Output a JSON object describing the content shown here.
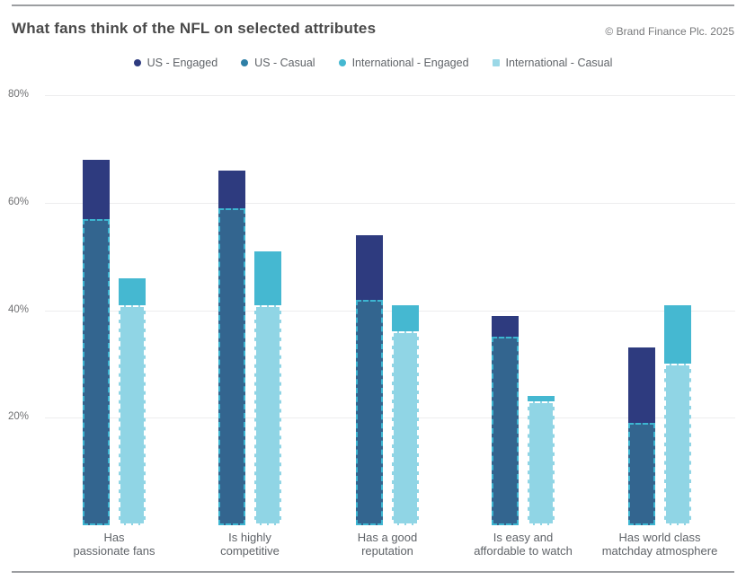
{
  "header": {
    "title": "What fans think of the NFL on selected attributes",
    "copyright": "© Brand Finance Plc. 2025"
  },
  "legend": {
    "items": [
      {
        "label": "US - Engaged",
        "marker": "circle",
        "color": "#2e3b7f"
      },
      {
        "label": "US - Casual",
        "marker": "circle",
        "color": "#2e7fa6"
      },
      {
        "label": "International - Engaged",
        "marker": "circle",
        "color": "#45b8d1"
      },
      {
        "label": "International - Casual",
        "marker": "square",
        "color": "#9bd8e7"
      }
    ]
  },
  "chart_data": {
    "type": "bar",
    "title": "What fans think of the NFL on selected attributes",
    "unit": "percent",
    "categories": [
      "Has passionate fans",
      "Is highly competitive",
      "Has a good reputation",
      "Is easy and affordable to watch",
      "Has world class matchday atmosphere"
    ],
    "category_label_lines": [
      [
        "Has",
        "passionate fans"
      ],
      [
        "Is highly",
        "competitive"
      ],
      [
        "Has a good",
        "reputation"
      ],
      [
        "Is easy and",
        "affordable to watch"
      ],
      [
        "Has world class",
        "matchday atmosphere"
      ]
    ],
    "series": [
      {
        "name": "US - Engaged",
        "style": "solid",
        "color": "#2e3b7f",
        "values": [
          68,
          66,
          54,
          39,
          33
        ]
      },
      {
        "name": "US - Casual",
        "style": "dashed-overlay",
        "fill": "#33658f",
        "border": "#3db5d1",
        "values": [
          57,
          59,
          42,
          35,
          19
        ]
      },
      {
        "name": "International - Engaged",
        "style": "solid",
        "color": "#45b8d1",
        "values": [
          46,
          51,
          41,
          24,
          41
        ]
      },
      {
        "name": "International - Casual",
        "style": "dashed-overlay",
        "fill": "#90d5e5",
        "border": "#ffffff",
        "values": [
          41,
          41,
          36,
          23,
          30
        ]
      }
    ],
    "yticks": [
      "80%",
      "60%",
      "40%",
      "20%"
    ],
    "ytick_values": [
      80,
      60,
      40,
      20
    ],
    "ylim": [
      0,
      80
    ],
    "grid": true,
    "legend_position": "top",
    "gridline_color": "#ededee"
  }
}
